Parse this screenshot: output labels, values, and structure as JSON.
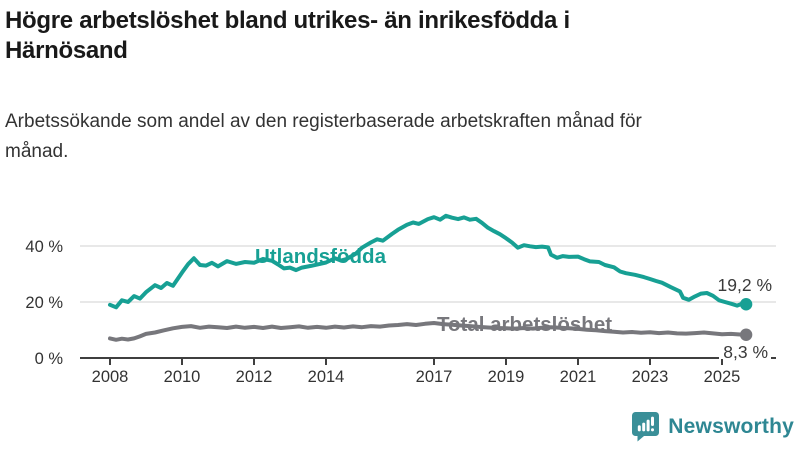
{
  "header": {
    "title": "Högre arbetslöshet bland utrikes- än inrikesfödda i Härnösand",
    "subtitle": "Arbetssökande som andel av den registerbaserade arbetskraften månad för månad."
  },
  "chart_data": {
    "type": "line",
    "unit": "%",
    "grid": "horizontal-only",
    "x_tick_labels": [
      "2008",
      "2010",
      "2012",
      "2014",
      "2017",
      "2019",
      "2021",
      "2023",
      "2025"
    ],
    "x_tick_years": [
      2008,
      2010,
      2012,
      2014,
      2017,
      2019,
      2021,
      2023,
      2025
    ],
    "y_ticks": [
      {
        "value": 0,
        "label": "0 %"
      },
      {
        "value": 20,
        "label": "20 %"
      },
      {
        "value": 40,
        "label": "40 %"
      }
    ],
    "ylim": [
      0,
      55
    ],
    "xlim_years": [
      2007.2,
      2026.5
    ],
    "axis_color": "#3f3f3f",
    "grid_color": "#d9d9d9",
    "tick_label_color": "#333333",
    "value_label_color": "#3a3a3a",
    "series": [
      {
        "name": "Utlandsfödda",
        "label": "Utlandsfödda",
        "color": "#17a094",
        "end_label": "19,2 %",
        "x": [
          2008.0,
          2008.17,
          2008.33,
          2008.5,
          2008.67,
          2008.83,
          2009.0,
          2009.25,
          2009.42,
          2009.58,
          2009.75,
          2010.0,
          2010.17,
          2010.33,
          2010.5,
          2010.67,
          2010.83,
          2011.0,
          2011.25,
          2011.5,
          2011.75,
          2012.0,
          2012.25,
          2012.5,
          2012.67,
          2012.83,
          2013.0,
          2013.17,
          2013.33,
          2013.58,
          2013.83,
          2014.0,
          2014.25,
          2014.42,
          2014.58,
          2014.83,
          2015.0,
          2015.25,
          2015.42,
          2015.58,
          2015.83,
          2016.0,
          2016.25,
          2016.42,
          2016.58,
          2016.83,
          2017.0,
          2017.17,
          2017.33,
          2017.5,
          2017.67,
          2017.83,
          2018.0,
          2018.17,
          2018.33,
          2018.5,
          2018.67,
          2018.83,
          2019.0,
          2019.17,
          2019.33,
          2019.5,
          2019.67,
          2019.83,
          2020.0,
          2020.17,
          2020.25,
          2020.42,
          2020.58,
          2020.75,
          2021.0,
          2021.17,
          2021.33,
          2021.58,
          2021.75,
          2022.0,
          2022.17,
          2022.33,
          2022.58,
          2022.83,
          2023.0,
          2023.17,
          2023.33,
          2023.58,
          2023.83,
          2023.92,
          2024.08,
          2024.25,
          2024.42,
          2024.58,
          2024.75,
          2024.92,
          2025.08,
          2025.25,
          2025.42,
          2025.58,
          2025.67
        ],
        "values": [
          19.0,
          18.1,
          20.6,
          20.0,
          22.1,
          21.2,
          23.5,
          26.0,
          25.0,
          26.8,
          25.8,
          30.5,
          33.5,
          35.6,
          33.2,
          33.0,
          34.0,
          32.7,
          34.6,
          33.6,
          34.3,
          34.0,
          35.4,
          34.7,
          33.4,
          32.0,
          32.3,
          31.4,
          32.3,
          32.9,
          33.6,
          34.1,
          35.6,
          34.8,
          35.4,
          37.3,
          39.4,
          41.3,
          42.4,
          41.9,
          44.3,
          45.8,
          47.6,
          48.4,
          47.9,
          49.6,
          50.3,
          49.4,
          50.8,
          50.1,
          49.6,
          50.2,
          49.4,
          49.7,
          48.3,
          46.5,
          45.3,
          44.2,
          42.8,
          41.2,
          39.4,
          40.3,
          39.9,
          39.6,
          39.8,
          39.5,
          36.9,
          35.8,
          36.4,
          36.1,
          36.2,
          35.3,
          34.5,
          34.3,
          33.2,
          32.4,
          30.9,
          30.3,
          29.7,
          28.9,
          28.2,
          27.5,
          26.9,
          25.3,
          23.8,
          21.5,
          20.8,
          22.0,
          23.0,
          23.2,
          22.2,
          20.6,
          20.0,
          19.4,
          18.7,
          19.5,
          19.2
        ]
      },
      {
        "name": "Total arbetslöshet",
        "label": "Total arbetslöshet",
        "color": "#77777c",
        "end_label": "8,3 %",
        "x": [
          2008.0,
          2008.17,
          2008.33,
          2008.5,
          2008.67,
          2008.83,
          2009.0,
          2009.25,
          2009.5,
          2009.75,
          2010.0,
          2010.25,
          2010.5,
          2010.75,
          2011.0,
          2011.25,
          2011.5,
          2011.75,
          2012.0,
          2012.25,
          2012.5,
          2012.75,
          2013.0,
          2013.25,
          2013.5,
          2013.75,
          2014.0,
          2014.25,
          2014.5,
          2014.75,
          2015.0,
          2015.25,
          2015.5,
          2015.75,
          2016.0,
          2016.25,
          2016.5,
          2016.75,
          2017.0,
          2017.25,
          2017.5,
          2017.75,
          2018.0,
          2018.25,
          2018.5,
          2018.75,
          2019.0,
          2019.25,
          2019.5,
          2019.75,
          2020.0,
          2020.25,
          2020.5,
          2020.75,
          2021.0,
          2021.25,
          2021.5,
          2021.75,
          2022.0,
          2022.25,
          2022.5,
          2022.75,
          2023.0,
          2023.25,
          2023.5,
          2023.75,
          2024.0,
          2024.25,
          2024.5,
          2024.75,
          2025.0,
          2025.25,
          2025.5,
          2025.67
        ],
        "values": [
          7.0,
          6.5,
          6.9,
          6.6,
          7.0,
          7.7,
          8.6,
          9.1,
          9.9,
          10.6,
          11.1,
          11.4,
          10.8,
          11.2,
          11.0,
          10.7,
          11.2,
          10.8,
          11.1,
          10.7,
          11.2,
          10.7,
          11.0,
          11.3,
          10.8,
          11.1,
          10.8,
          11.2,
          10.9,
          11.3,
          11.0,
          11.4,
          11.2,
          11.6,
          11.8,
          12.1,
          11.8,
          12.2,
          12.5,
          12.1,
          11.9,
          11.6,
          11.4,
          11.1,
          10.9,
          10.7,
          10.6,
          10.5,
          10.7,
          10.5,
          10.8,
          11.0,
          10.8,
          10.6,
          10.4,
          10.1,
          9.9,
          9.6,
          9.4,
          9.1,
          9.3,
          9.0,
          9.2,
          8.9,
          9.1,
          8.8,
          8.7,
          8.9,
          9.1,
          8.8,
          8.5,
          8.6,
          8.4,
          8.3
        ]
      }
    ]
  },
  "branding": {
    "logo_text": "Newsworthy",
    "logo_color": "#2e8793",
    "icon": "bar-chart-speech-bubble-icon"
  }
}
